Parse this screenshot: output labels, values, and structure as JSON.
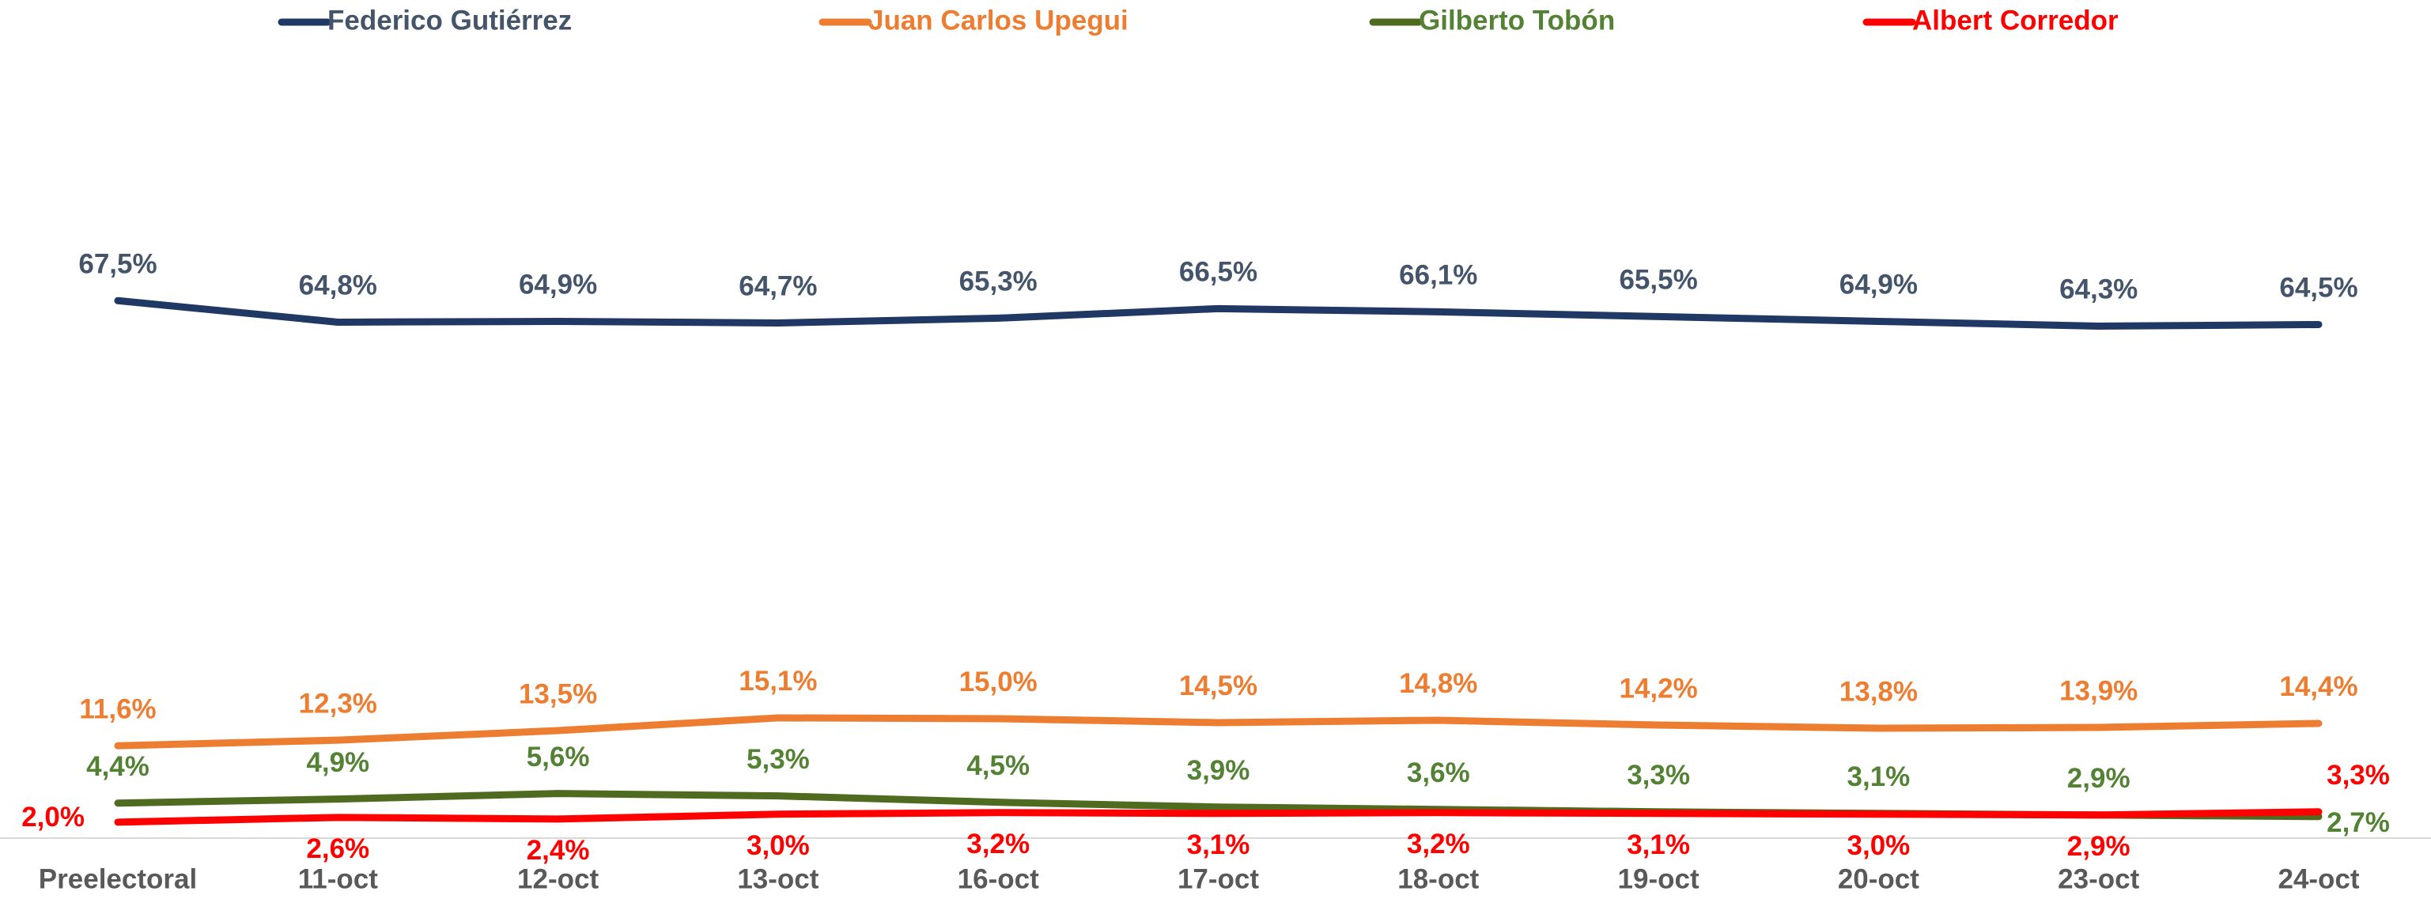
{
  "chart_data": {
    "type": "line",
    "categories": [
      "Preelectoral",
      "11-oct",
      "12-oct",
      "13-oct",
      "16-oct",
      "17-oct",
      "18-oct",
      "19-oct",
      "20-oct",
      "23-oct",
      "24-oct"
    ],
    "series": [
      {
        "name": "Federico Gutiérrez",
        "color": "#203864",
        "label_color": "#44546a",
        "values": [
          67.5,
          64.8,
          64.9,
          64.7,
          65.3,
          66.5,
          66.1,
          65.5,
          64.9,
          64.3,
          64.5
        ],
        "value_labels": [
          "67,5%",
          "64,8%",
          "64,9%",
          "64,7%",
          "65,3%",
          "66,5%",
          "66,1%",
          "65,5%",
          "64,9%",
          "64,3%",
          "64,5%"
        ]
      },
      {
        "name": "Juan Carlos Upegui",
        "color": "#ed7d31",
        "label_color": "#ed7d31",
        "values": [
          11.6,
          12.3,
          13.5,
          15.1,
          15.0,
          14.5,
          14.8,
          14.2,
          13.8,
          13.9,
          14.4
        ],
        "value_labels": [
          "11,6%",
          "12,3%",
          "13,5%",
          "15,1%",
          "15,0%",
          "14,5%",
          "14,8%",
          "14,2%",
          "13,8%",
          "13,9%",
          "14,4%"
        ]
      },
      {
        "name": "Gilberto Tobón",
        "color": "#4e6b1f",
        "label_color": "#548235",
        "values": [
          4.4,
          4.9,
          5.6,
          5.3,
          4.5,
          3.9,
          3.6,
          3.3,
          3.1,
          2.9,
          2.7
        ],
        "value_labels": [
          "4,4%",
          "4,9%",
          "5,6%",
          "5,3%",
          "4,5%",
          "3,9%",
          "3,6%",
          "3,3%",
          "3,1%",
          "2,9%",
          "2,7%"
        ]
      },
      {
        "name": "Albert Corredor",
        "color": "#ff0000",
        "label_color": "#ff0000",
        "values": [
          2.0,
          2.6,
          2.4,
          3.0,
          3.2,
          3.1,
          3.2,
          3.1,
          3.0,
          2.9,
          3.3
        ],
        "value_labels": [
          "2,0%",
          "2,6%",
          "2,4%",
          "3,0%",
          "3,2%",
          "3,1%",
          "3,2%",
          "3,1%",
          "3,0%",
          "2,9%",
          "3,3%"
        ]
      }
    ]
  }
}
